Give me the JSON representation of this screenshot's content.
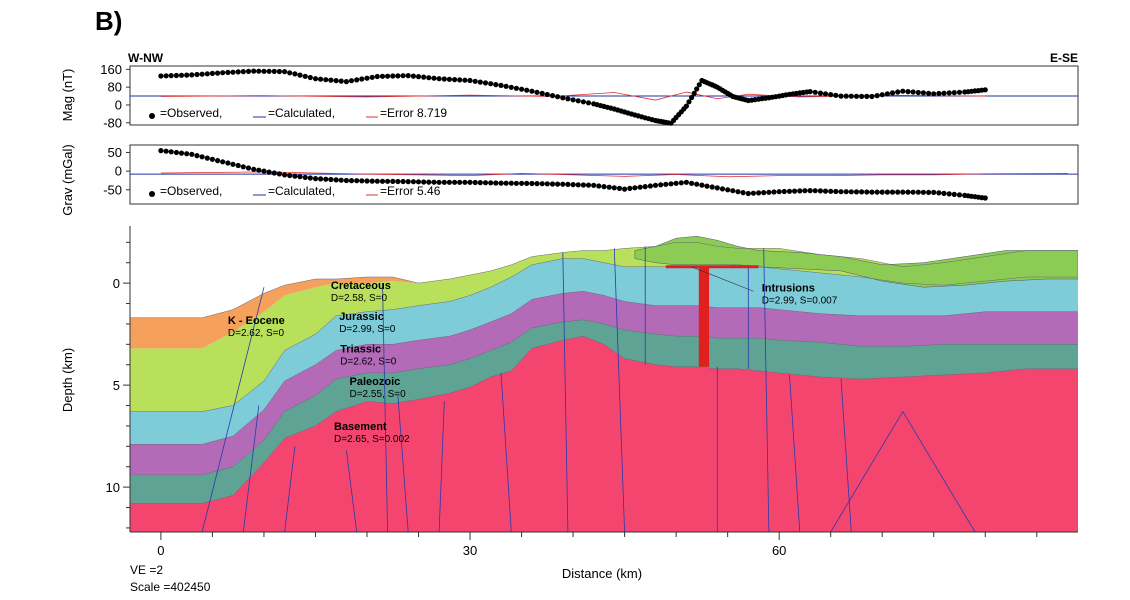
{
  "figure": {
    "panel_label": "B)",
    "direction_left": "W-NW",
    "direction_right": "E-SE",
    "ve_text": "VE =2",
    "scale_text": "Scale =402450"
  },
  "colors": {
    "k_eocene": "#f5a05c",
    "cretaceous": "#b8e05a",
    "cretaceous_top": "#8ccc55",
    "jurassic": "#7dccd8",
    "triassic": "#b36bb8",
    "paleozoic": "#5fa394",
    "basement": "#f4456f",
    "intrusion": "#e01f1f",
    "fault_line": "#2a3aa8",
    "observed": "#000000",
    "calculated": "#2233aa",
    "error": "#e03030"
  },
  "chart_data": [
    {
      "type": "scatter",
      "name": "magnetic_panel",
      "ylabel": "Mag (nT)",
      "yticks": [
        160,
        80,
        0,
        -80
      ],
      "ylim": [
        -90,
        175
      ],
      "xlim": [
        -3,
        89
      ],
      "legend": {
        "observed": "=Observed,",
        "calculated": "=Calculated,",
        "error": "=Error 8.719"
      },
      "observed": {
        "x": [
          0,
          3,
          6,
          9,
          12,
          15,
          18,
          21,
          24,
          27,
          30,
          33,
          36,
          39,
          42,
          44,
          46,
          48,
          49.5,
          51,
          52.5,
          54,
          55.5,
          57,
          59,
          61,
          63,
          66,
          69,
          72,
          75,
          78,
          80
        ],
        "y": [
          130,
          135,
          145,
          152,
          150,
          118,
          105,
          128,
          132,
          118,
          110,
          88,
          62,
          32,
          5,
          -18,
          -45,
          -70,
          -82,
          -5,
          110,
          80,
          38,
          20,
          32,
          48,
          60,
          40,
          38,
          62,
          50,
          58,
          68
        ]
      },
      "calculated": {
        "x": [
          -3,
          89
        ],
        "y": [
          40,
          40
        ]
      },
      "error": {
        "x": [
          0,
          10,
          20,
          30,
          38,
          44,
          48,
          51,
          54,
          57,
          62,
          70,
          80
        ],
        "y": [
          38,
          42,
          36,
          44,
          38,
          56,
          22,
          58,
          28,
          48,
          36,
          44,
          40
        ]
      }
    },
    {
      "type": "scatter",
      "name": "gravity_panel",
      "ylabel": "Grav (mGal)",
      "yticks": [
        50,
        0,
        -50
      ],
      "ylim": [
        -88,
        70
      ],
      "xlim": [
        -3,
        89
      ],
      "legend": {
        "observed": "=Observed,",
        "calculated": "=Calculated,",
        "error": "=Error 5.46"
      },
      "observed": {
        "x": [
          0,
          3,
          6,
          9,
          12,
          15,
          18,
          21,
          24,
          27,
          30,
          33,
          36,
          39,
          42,
          45,
          48,
          51,
          54,
          57,
          60,
          63,
          66,
          69,
          72,
          75,
          78,
          80
        ],
        "y": [
          55,
          45,
          25,
          5,
          -10,
          -20,
          -25,
          -27,
          -28,
          -30,
          -30,
          -32,
          -33,
          -35,
          -38,
          -48,
          -38,
          -30,
          -45,
          -60,
          -55,
          -52,
          -55,
          -56,
          -56,
          -57,
          -65,
          -72
        ]
      },
      "calculated": {
        "x": [
          -3,
          89
        ],
        "y": [
          -8,
          -8
        ]
      },
      "error": {
        "x": [
          0,
          10,
          20,
          30,
          35,
          40,
          45,
          50,
          55,
          60,
          65,
          70,
          75,
          80,
          88
        ],
        "y": [
          -5,
          -2,
          -8,
          -12,
          -6,
          -10,
          -14,
          -9,
          -15,
          -12,
          -12,
          -10,
          -10,
          -7,
          -6
        ]
      }
    },
    {
      "type": "area",
      "name": "depth_section",
      "ylabel": "Depth (km)",
      "xlabel": "Distance (km)",
      "xticks": [
        0,
        30,
        60
      ],
      "yticks": [
        0,
        5,
        10
      ],
      "xlim": [
        -3,
        89
      ],
      "ylim": [
        12.2,
        -2.8
      ],
      "labels": [
        {
          "title": "K - Eocene",
          "sub": "D=2.62, S=0",
          "x": 6.5,
          "y": 2.0
        },
        {
          "title": "Cretaceous",
          "sub": "D=2.58, S=0",
          "x": 16.5,
          "y": 0.3
        },
        {
          "title": "Jurassic",
          "sub": "D=2.99, S=0",
          "x": 17.3,
          "y": 1.8
        },
        {
          "title": "Triassic",
          "sub": "D=2.62, S=0",
          "x": 17.4,
          "y": 3.4
        },
        {
          "title": "Paleozoic",
          "sub": "D=2.55, S=0",
          "x": 18.3,
          "y": 5.0
        },
        {
          "title": "Basement",
          "sub": "D=2.65, S=0.002",
          "x": 16.8,
          "y": 7.2
        },
        {
          "title": "Intrusions",
          "sub": "D=2.99, S=0.007",
          "x": 58.3,
          "y": 0.4
        }
      ],
      "horizons": {
        "x": [
          -3,
          4,
          7,
          10,
          12,
          15,
          17,
          20,
          22.5,
          25,
          28,
          30,
          32,
          34,
          36,
          39,
          41,
          43,
          45,
          48,
          50,
          52,
          54,
          56,
          58,
          60,
          64,
          68,
          72,
          76,
          80,
          84,
          89
        ],
        "topo": [
          1.7,
          1.7,
          1.3,
          0.5,
          0.1,
          -0.2,
          -0.2,
          -0.3,
          -0.3,
          0.0,
          -0.2,
          -0.4,
          -0.6,
          -0.9,
          -1.3,
          -1.5,
          -1.6,
          -1.6,
          -1.7,
          -1.8,
          -2.0,
          -2.0,
          -1.8,
          -1.7,
          -1.7,
          -1.7,
          -1.4,
          -1.2,
          -0.8,
          -1.0,
          -1.3,
          -1.6,
          -1.6
        ],
        "k_base": [
          3.2,
          3.2,
          2.4,
          1.4,
          0.6,
          0.2,
          0.0,
          0.0,
          -0.1,
          0.0,
          -0.2,
          -0.4,
          -0.6,
          -0.9,
          -1.3,
          -1.5,
          -1.6,
          -1.6,
          -1.7,
          -1.8,
          -2.0,
          -2.0,
          -1.8,
          -1.7,
          -1.7,
          -1.7,
          -1.4,
          -1.2,
          -0.8,
          -1.0,
          -1.3,
          -1.6,
          -1.6
        ],
        "cret_base": [
          6.3,
          6.3,
          6.0,
          4.8,
          3.3,
          2.5,
          1.6,
          1.4,
          1.3,
          1.1,
          0.9,
          0.6,
          0.2,
          -0.3,
          -0.9,
          -1.2,
          -1.2,
          -1.0,
          -0.8,
          -0.8,
          -0.8,
          -0.8,
          -0.8,
          -0.9,
          -0.8,
          -0.7,
          -0.5,
          -0.3,
          0.0,
          0.1,
          -0.1,
          -0.3,
          -0.3
        ],
        "jur_base": [
          7.9,
          7.9,
          7.5,
          6.2,
          4.8,
          4.0,
          3.3,
          3.0,
          3.0,
          2.8,
          2.6,
          2.3,
          1.9,
          1.5,
          0.8,
          0.5,
          0.4,
          0.6,
          0.9,
          1.1,
          1.1,
          1.1,
          1.2,
          1.2,
          1.2,
          1.3,
          1.5,
          1.6,
          1.6,
          1.6,
          1.4,
          1.4,
          1.4
        ],
        "tri_base": [
          9.4,
          9.4,
          9.0,
          7.7,
          6.3,
          5.5,
          4.7,
          4.4,
          4.4,
          4.2,
          4.0,
          3.7,
          3.3,
          2.9,
          2.2,
          1.9,
          1.8,
          2.0,
          2.3,
          2.5,
          2.6,
          2.6,
          2.7,
          2.7,
          2.7,
          2.8,
          2.9,
          3.1,
          3.1,
          3.0,
          3.0,
          3.0,
          3.0
        ],
        "pal_base": [
          10.8,
          10.8,
          10.4,
          8.8,
          7.6,
          7.0,
          6.3,
          5.8,
          5.9,
          5.7,
          5.4,
          5.1,
          4.6,
          4.3,
          3.2,
          2.8,
          2.6,
          3.0,
          3.7,
          4.0,
          4.1,
          4.1,
          4.2,
          4.2,
          4.3,
          4.4,
          4.6,
          4.7,
          4.6,
          4.5,
          4.4,
          4.2,
          4.2
        ]
      },
      "cap_top": {
        "x": [
          46,
          48,
          50,
          52,
          54,
          56,
          58,
          62,
          66,
          70,
          74,
          78,
          82,
          86,
          89
        ],
        "top": [
          -1.6,
          -1.8,
          -2.2,
          -2.3,
          -2.1,
          -1.8,
          -1.6,
          -1.5,
          -1.3,
          -0.9,
          -1.0,
          -1.3,
          -1.6,
          -1.6,
          -1.6
        ],
        "base": [
          -1.2,
          -1.0,
          -0.9,
          -0.9,
          -0.9,
          -0.9,
          -0.8,
          -0.7,
          -0.6,
          -0.1,
          0.2,
          0.1,
          -0.1,
          -0.2,
          -0.2
        ]
      },
      "intrusion": {
        "stock_x": [
          52.2,
          53.2
        ],
        "stock_top": -0.8,
        "stock_base": 4.1,
        "sill_x": [
          49,
          58
        ],
        "sill_depth": -0.8
      },
      "faults": [
        [
          [
            4,
            12.2
          ],
          [
            10,
            0.2
          ]
        ],
        [
          [
            8,
            12.2
          ],
          [
            9.5,
            6.0
          ]
        ],
        [
          [
            12,
            12.2
          ],
          [
            13,
            8.0
          ]
        ],
        [
          [
            19,
            12.2
          ],
          [
            18,
            8.2
          ]
        ],
        [
          [
            22,
            12.2
          ],
          [
            21.5,
            0.0
          ]
        ],
        [
          [
            24,
            12.2
          ],
          [
            23,
            5.5
          ]
        ],
        [
          [
            27,
            12.2
          ],
          [
            27.5,
            5.8
          ]
        ],
        [
          [
            34,
            12.2
          ],
          [
            33,
            4.4
          ]
        ],
        [
          [
            39.5,
            12.2
          ],
          [
            39,
            -1.5
          ]
        ],
        [
          [
            45,
            12.2
          ],
          [
            44,
            -1.7
          ]
        ],
        [
          [
            47,
            4.0
          ],
          [
            47,
            -1.8
          ]
        ],
        [
          [
            54,
            12.2
          ],
          [
            54,
            4.1
          ]
        ],
        [
          [
            57,
            4.2
          ],
          [
            57,
            -0.9
          ]
        ],
        [
          [
            59,
            12.2
          ],
          [
            58.5,
            -1.7
          ]
        ],
        [
          [
            62,
            12.2
          ],
          [
            61,
            4.5
          ]
        ],
        [
          [
            67,
            12.2
          ],
          [
            66,
            4.7
          ]
        ]
      ],
      "basement_wedge": [
        [
          65,
          12.2
        ],
        [
          72,
          6.3
        ],
        [
          79,
          12.2
        ]
      ]
    }
  ]
}
